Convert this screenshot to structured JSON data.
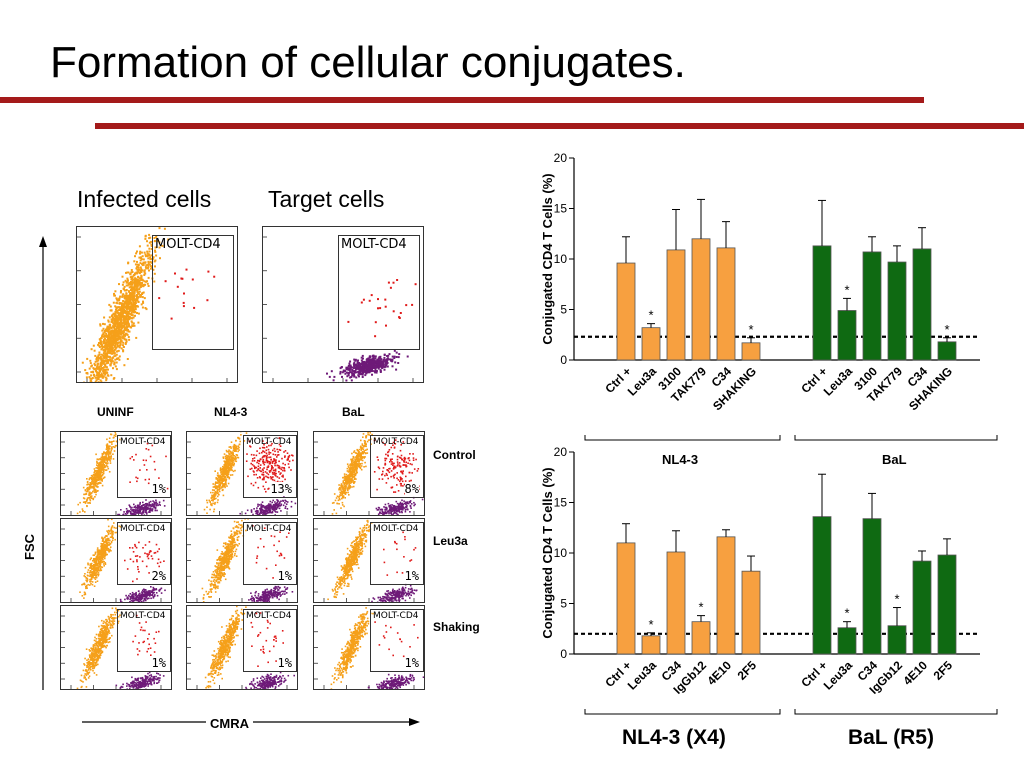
{
  "title": "Formation of cellular conjugates.",
  "flow": {
    "infected_header": "Infected cells",
    "target_header": "Target cells",
    "gate_label": "MOLT-CD4",
    "column_labels": [
      "UNINF",
      "NL4-3",
      "BaL"
    ],
    "row_labels": [
      "Control",
      "Leu3a",
      "Shaking"
    ],
    "x_axis_label": "CMRA",
    "y_axis_label": "FSC",
    "percentages": [
      [
        "1%",
        "13%",
        "8%"
      ],
      [
        "2%",
        "1%",
        "1%"
      ],
      [
        "1%",
        "1%",
        "1%"
      ]
    ],
    "colors": {
      "infected": "#f5a01a",
      "target": "#6e1a78",
      "conjugate": "#e01a1a",
      "gate_border": "#333333"
    }
  },
  "chart_data": [
    {
      "type": "bar",
      "ylabel": "Conjugated CD4 T Cells (%)",
      "ylim": [
        0,
        20
      ],
      "yticks": [
        0,
        5,
        10,
        15,
        20
      ],
      "baseline": 2.3,
      "groups": [
        {
          "name": "NL4-3",
          "color": "#f7a040",
          "categories": [
            "Ctrl +",
            "Leu3a",
            "3100",
            "TAK779",
            "C34",
            "SHAKING"
          ],
          "values": [
            9.6,
            3.2,
            10.9,
            12.0,
            11.1,
            1.7
          ],
          "errors": [
            2.6,
            0.4,
            4.0,
            3.9,
            2.6,
            0.5
          ],
          "significant": [
            false,
            true,
            false,
            false,
            false,
            true
          ]
        },
        {
          "name": "BaL",
          "color": "#0f6a12",
          "categories": [
            "Ctrl +",
            "Leu3a",
            "3100",
            "TAK779",
            "C34",
            "SHAKING"
          ],
          "values": [
            11.3,
            4.9,
            10.7,
            9.7,
            11.0,
            1.8
          ],
          "errors": [
            4.5,
            1.2,
            1.5,
            1.6,
            2.1,
            0.4
          ],
          "significant": [
            false,
            true,
            false,
            false,
            false,
            true
          ]
        }
      ]
    },
    {
      "type": "bar",
      "ylabel": "Conjugated CD4 T Cells (%)",
      "ylim": [
        0,
        20
      ],
      "yticks": [
        0,
        5,
        10,
        15,
        20
      ],
      "baseline": 2.0,
      "groups": [
        {
          "name": "NL4-3  (X4)",
          "color": "#f7a040",
          "categories": [
            "Ctrl +",
            "Leu3a",
            "C34",
            "IgGb12",
            "4E10",
            "2F5"
          ],
          "values": [
            11.0,
            1.8,
            10.1,
            3.2,
            11.6,
            8.2
          ],
          "errors": [
            1.9,
            0.3,
            2.1,
            0.6,
            0.7,
            1.5
          ],
          "significant": [
            false,
            true,
            false,
            true,
            false,
            false
          ]
        },
        {
          "name": "BaL (R5)",
          "color": "#0f6a12",
          "categories": [
            "Ctrl +",
            "Leu3a",
            "C34",
            "IgGb12",
            "4E10",
            "2F5"
          ],
          "values": [
            13.6,
            2.6,
            13.4,
            2.8,
            9.2,
            9.8
          ],
          "errors": [
            4.2,
            0.6,
            2.5,
            1.8,
            1.0,
            1.6
          ],
          "significant": [
            false,
            true,
            false,
            true,
            false,
            false
          ]
        }
      ]
    }
  ],
  "bracket_labels": {
    "top_left": "NL4-3",
    "top_right": "BaL",
    "bottom_left": "NL4-3  (X4)",
    "bottom_right": "BaL (R5)"
  },
  "significance_mark": "*"
}
